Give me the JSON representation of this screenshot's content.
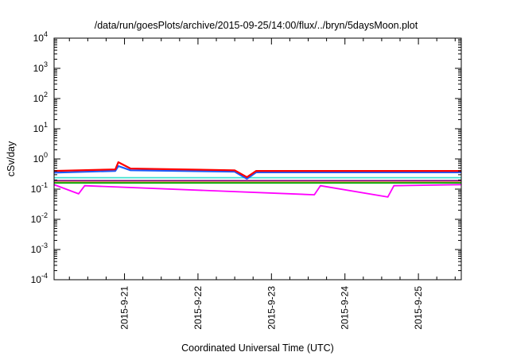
{
  "chart_data": {
    "type": "line",
    "title": "/data/run/goesPlots/archive/2015-09-25/14:00/flux/../bryn/5daysMoon.plot",
    "xlabel": "Coordinated Universal Time (UTC)",
    "ylabel": "cSv/day",
    "y_scale": "log",
    "ylim": [
      0.0001,
      10000
    ],
    "y_ticks": [
      {
        "base": "10",
        "exp": "-4"
      },
      {
        "base": "10",
        "exp": "-3"
      },
      {
        "base": "10",
        "exp": "-2"
      },
      {
        "base": "10",
        "exp": "-1"
      },
      {
        "base": "10",
        "exp": "0"
      },
      {
        "base": "10",
        "exp": "1"
      },
      {
        "base": "10",
        "exp": "2"
      },
      {
        "base": "10",
        "exp": "3"
      },
      {
        "base": "10",
        "exp": "4"
      }
    ],
    "xlim": [
      "2015-09-20 01:00",
      "2015-09-25 14:00"
    ],
    "x_ticks": [
      "2015-9-21",
      "2015-9-22",
      "2015-9-23",
      "2015-9-24",
      "2015-9-25"
    ],
    "grid": false,
    "legend": "none",
    "series": [
      {
        "color": "#ff0000",
        "points": [
          [
            "2015-09-20 01:00",
            0.4
          ],
          [
            "2015-09-20 21:00",
            0.45
          ],
          [
            "2015-09-20 22:00",
            0.78
          ],
          [
            "2015-09-21 02:00",
            0.48
          ],
          [
            "2015-09-22 12:00",
            0.42
          ],
          [
            "2015-09-22 16:00",
            0.25
          ],
          [
            "2015-09-22 19:00",
            0.4
          ],
          [
            "2015-09-25 14:00",
            0.4
          ]
        ]
      },
      {
        "color": "#1a5cff",
        "points": [
          [
            "2015-09-20 01:00",
            0.35
          ],
          [
            "2015-09-20 21:00",
            0.4
          ],
          [
            "2015-09-20 22:00",
            0.58
          ],
          [
            "2015-09-21 02:00",
            0.42
          ],
          [
            "2015-09-22 12:00",
            0.38
          ],
          [
            "2015-09-22 16:00",
            0.22
          ],
          [
            "2015-09-22 19:00",
            0.36
          ],
          [
            "2015-09-25 14:00",
            0.36
          ]
        ]
      },
      {
        "color": "#40e0d0",
        "points": [
          [
            "2015-09-20 01:00",
            0.24
          ],
          [
            "2015-09-25 14:00",
            0.24
          ]
        ]
      },
      {
        "color": "#800080",
        "points": [
          [
            "2015-09-20 01:00",
            0.19
          ],
          [
            "2015-09-25 14:00",
            0.19
          ]
        ]
      },
      {
        "color": "#ff9966",
        "points": [
          [
            "2015-09-20 01:00",
            0.17
          ],
          [
            "2015-09-25 14:00",
            0.17
          ]
        ]
      },
      {
        "color": "#00aa00",
        "points": [
          [
            "2015-09-20 01:00",
            0.16
          ],
          [
            "2015-09-25 14:00",
            0.16
          ]
        ]
      },
      {
        "color": "#ff00ff",
        "points": [
          [
            "2015-09-20 01:00",
            0.14
          ],
          [
            "2015-09-20 09:00",
            0.07
          ],
          [
            "2015-09-20 11:00",
            0.13
          ],
          [
            "2015-09-23 14:00",
            0.065
          ],
          [
            "2015-09-23 16:00",
            0.13
          ],
          [
            "2015-09-24 14:00",
            0.055
          ],
          [
            "2015-09-24 16:00",
            0.13
          ],
          [
            "2015-09-25 14:00",
            0.14
          ]
        ]
      }
    ]
  }
}
